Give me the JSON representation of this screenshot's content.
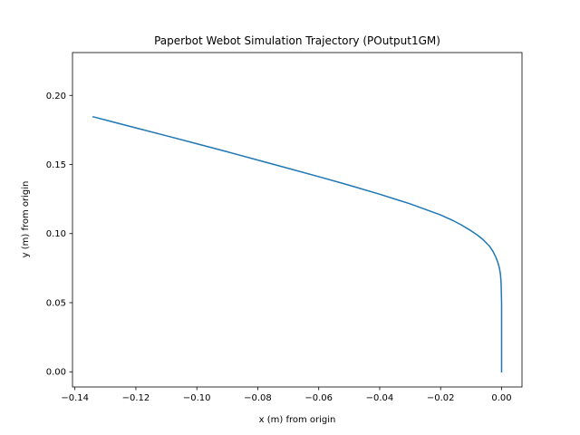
{
  "chart_data": {
    "type": "line",
    "title": "Paperbot Webot Simulation Trajectory (POutput1GM)",
    "xlabel": "x (m) from origin",
    "ylabel": "y (m) from origin",
    "xlim": [
      -0.1408,
      0.0067
    ],
    "ylim": [
      -0.011,
      0.231
    ],
    "xticks": [
      -0.14,
      -0.12,
      -0.1,
      -0.08,
      -0.06,
      -0.04,
      -0.02,
      0.0
    ],
    "xtick_labels": [
      "−0.14",
      "−0.12",
      "−0.10",
      "−0.08",
      "−0.06",
      "−0.04",
      "−0.02",
      "0.00"
    ],
    "yticks": [
      0.0,
      0.05,
      0.1,
      0.15,
      0.2
    ],
    "ytick_labels": [
      "0.00",
      "0.05",
      "0.10",
      "0.15",
      "0.20"
    ],
    "grid": false,
    "legend": "none",
    "series": [
      {
        "color": "#1f77b4",
        "x": [
          0.0,
          0.0,
          0.0,
          -0.0001,
          -0.0002,
          -0.0004,
          -0.0007,
          -0.0012,
          -0.0019,
          -0.0028,
          -0.004,
          -0.006,
          -0.008,
          -0.01,
          -0.013,
          -0.016,
          -0.02,
          -0.025,
          -0.03,
          -0.035,
          -0.04,
          -0.05,
          -0.06,
          -0.07,
          -0.08,
          -0.09,
          -0.1,
          -0.11,
          -0.12,
          -0.13,
          -0.134
        ],
        "y": [
          0.0,
          0.02,
          0.05,
          0.06,
          0.066,
          0.071,
          0.075,
          0.079,
          0.083,
          0.087,
          0.091,
          0.0955,
          0.099,
          0.102,
          0.106,
          0.1095,
          0.1135,
          0.1175,
          0.1215,
          0.125,
          0.1285,
          0.135,
          0.1412,
          0.1472,
          0.1532,
          0.1592,
          0.165,
          0.1708,
          0.1765,
          0.1822,
          0.1845
        ]
      }
    ]
  }
}
